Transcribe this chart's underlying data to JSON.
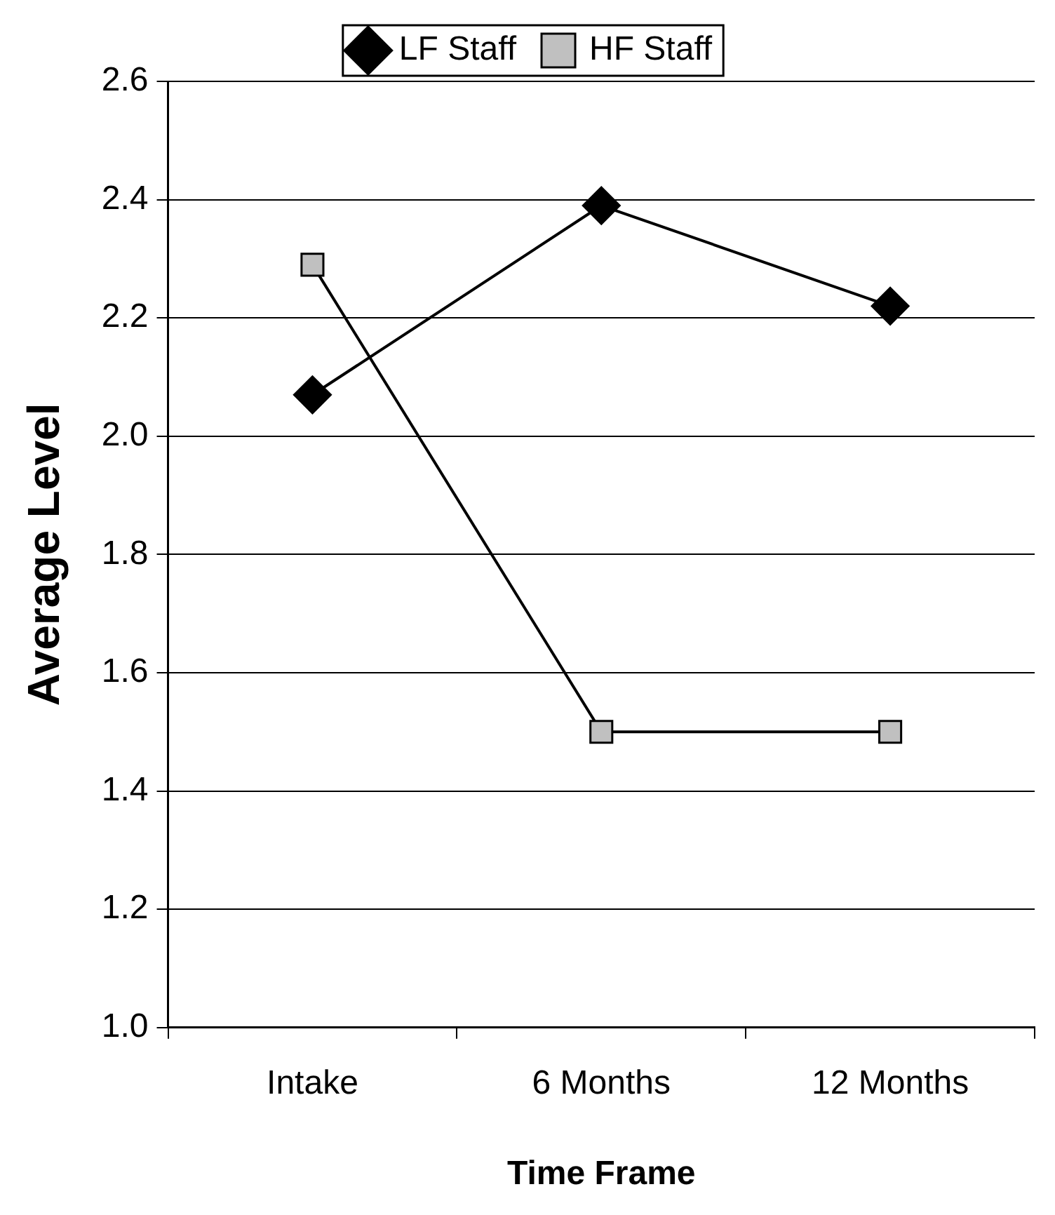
{
  "chart_data": {
    "type": "line",
    "xlabel": "Time Frame",
    "ylabel": "Average Level",
    "categories": [
      "Intake",
      "6 Months",
      "12 Months"
    ],
    "series": [
      {
        "name": "LF Staff",
        "color": "#000000",
        "marker": "diamond",
        "values": [
          2.07,
          2.39,
          2.22
        ]
      },
      {
        "name": "HF Staff",
        "color": "#c0c0c0",
        "marker": "square",
        "values": [
          2.29,
          1.5,
          1.5
        ]
      }
    ],
    "ylim": [
      1.0,
      2.6
    ],
    "yticks": [
      {
        "value": 1.0,
        "label": "1.0"
      },
      {
        "value": 1.2,
        "label": "1.2"
      },
      {
        "value": 1.4,
        "label": "1.4"
      },
      {
        "value": 1.6,
        "label": "1.6"
      },
      {
        "value": 1.8,
        "label": "1.8"
      },
      {
        "value": 2.0,
        "label": "2.0"
      },
      {
        "value": 2.2,
        "label": "2.2"
      },
      {
        "value": 2.4,
        "label": "2.4"
      },
      {
        "value": 2.6,
        "label": "2.6"
      }
    ],
    "grid": "y",
    "legend": "top",
    "line_style": "solid"
  }
}
